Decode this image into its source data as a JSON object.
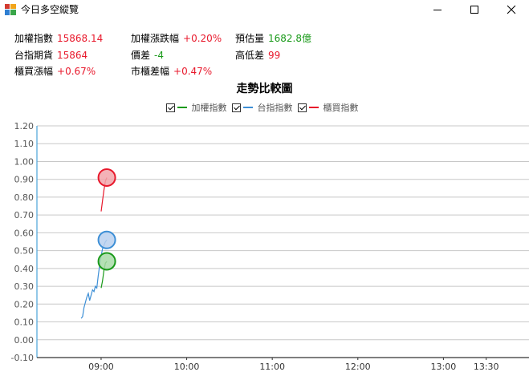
{
  "window": {
    "title": "今日多空縱覽",
    "minimize_glyph": "—",
    "maximize_glyph": "☐",
    "close_glyph": "✕"
  },
  "stats": {
    "weighted_index": {
      "label": "加權指數",
      "value": "15868.14"
    },
    "weighted_change": {
      "label": "加權漲跌幅",
      "value": "+0.20%"
    },
    "est_volume": {
      "label": "預估量",
      "value": "1682.8億"
    },
    "futures": {
      "label": "台指期貨",
      "value": "15864"
    },
    "basis": {
      "label": "價差",
      "value": "-4"
    },
    "high_low_diff": {
      "label": "高低差",
      "value": "99"
    },
    "otc_change": {
      "label": "櫃買漲幅",
      "value": "+0.67%"
    },
    "otc_diff": {
      "label": "市櫃差幅",
      "value": "+0.47%"
    }
  },
  "chart_data": {
    "type": "line",
    "title": "走勢比較圖",
    "legend_placement": "top-center",
    "grid": true,
    "xlabel": "",
    "ylabel": "",
    "ylim": [
      -0.1,
      1.2
    ],
    "y_ticks": [
      "1.20",
      "1.10",
      "1.00",
      "0.90",
      "0.80",
      "0.70",
      "0.60",
      "0.50",
      "0.40",
      "0.30",
      "0.20",
      "0.10",
      "0.00",
      "-0.10"
    ],
    "x_ticks": [
      "09:00",
      "10:00",
      "11:00",
      "12:00",
      "13:00",
      "13:30"
    ],
    "series": [
      {
        "name": "加權指數",
        "color": "#1a9a1a",
        "marker_fill": "#a8dba8",
        "x": [
          "09:00",
          "09:01",
          "09:02",
          "09:03",
          "09:04"
        ],
        "y": [
          0.29,
          0.33,
          0.39,
          0.43,
          0.44
        ]
      },
      {
        "name": "台指指數",
        "color": "#3d8fd6",
        "marker_fill": "#b8d0ef",
        "x": [
          "08:46",
          "08:47",
          "08:48",
          "08:49",
          "08:50",
          "08:51",
          "08:52",
          "08:53",
          "08:54",
          "08:55",
          "08:56",
          "08:57",
          "08:58",
          "08:59",
          "09:00",
          "09:01",
          "09:02",
          "09:03",
          "09:04"
        ],
        "y": [
          0.12,
          0.13,
          0.18,
          0.21,
          0.24,
          0.26,
          0.22,
          0.25,
          0.28,
          0.27,
          0.3,
          0.29,
          0.36,
          0.42,
          0.47,
          0.51,
          0.53,
          0.55,
          0.56
        ]
      },
      {
        "name": "櫃買指數",
        "color": "#e8192c",
        "marker_fill": "#f2a5aa",
        "x": [
          "09:00",
          "09:01",
          "09:02",
          "09:03",
          "09:04"
        ],
        "y": [
          0.72,
          0.78,
          0.84,
          0.89,
          0.91
        ]
      }
    ]
  }
}
